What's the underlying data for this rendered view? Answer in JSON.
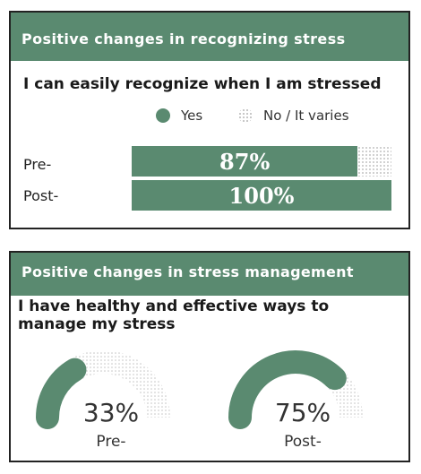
{
  "colors": {
    "accent": "#5a8a70",
    "dots": "#c4c4c4",
    "border": "#222222"
  },
  "panel1": {
    "title": "Positive changes in recognizing stress",
    "question": "I can easily recognize when I am stressed",
    "legend": {
      "yes": "Yes",
      "no": "No / It varies"
    }
  },
  "panel2": {
    "title": "Positive changes in stress management",
    "question": "I have healthy and effective ways to manage my stress"
  },
  "chart_data": [
    {
      "type": "bar",
      "orientation": "horizontal",
      "categories": [
        "Pre-",
        "Post-"
      ],
      "series": [
        {
          "name": "Yes",
          "values": [
            87,
            100
          ]
        },
        {
          "name": "No / It varies",
          "values": [
            13,
            0
          ]
        }
      ],
      "value_labels": [
        "87%",
        "100%"
      ],
      "unit": "%"
    },
    {
      "type": "pie",
      "style": "semicircle-gauge",
      "gauges": [
        {
          "label": "Pre-",
          "value": 33,
          "display": "33%"
        },
        {
          "label": "Post-",
          "value": 75,
          "display": "75%"
        }
      ]
    }
  ]
}
